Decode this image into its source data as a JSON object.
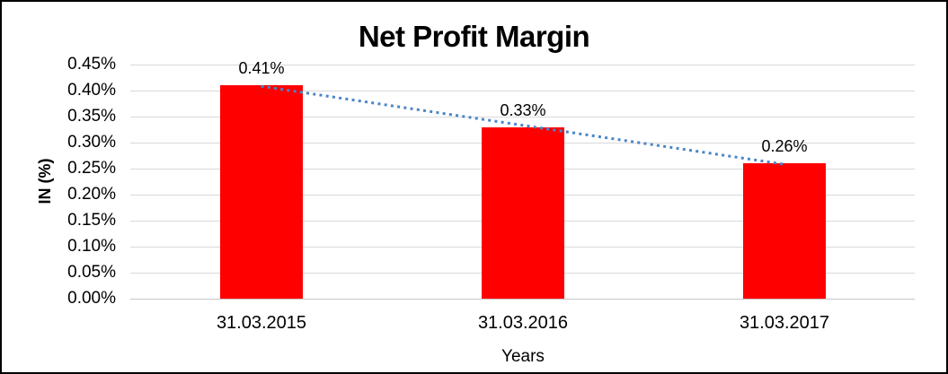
{
  "chart_data": {
    "type": "bar",
    "title": "Net Profit Margin",
    "xlabel": "Years",
    "ylabel": "IN (%)",
    "categories": [
      "31.03.2015",
      "31.03.2016",
      "31.03.2017"
    ],
    "values": [
      0.41,
      0.33,
      0.26
    ],
    "data_labels": [
      "0.41%",
      "0.33%",
      "0.26%"
    ],
    "y_ticks_top_to_bottom": [
      "0.45%",
      "0.40%",
      "0.35%",
      "0.30%",
      "0.25%",
      "0.20%",
      "0.15%",
      "0.10%",
      "0.05%",
      "0.00%"
    ],
    "ylim": [
      0,
      0.45
    ],
    "y_tick_step": 0.05,
    "grid": true,
    "legend": "none",
    "trendline": {
      "type": "linear",
      "style": "dotted"
    },
    "colors": {
      "bar": "#ff0000",
      "trendline": "#4a86c8",
      "gridline": "#d9d9d9",
      "text": "#000000",
      "background": "#ffffff",
      "frame_border": "#000000"
    }
  }
}
